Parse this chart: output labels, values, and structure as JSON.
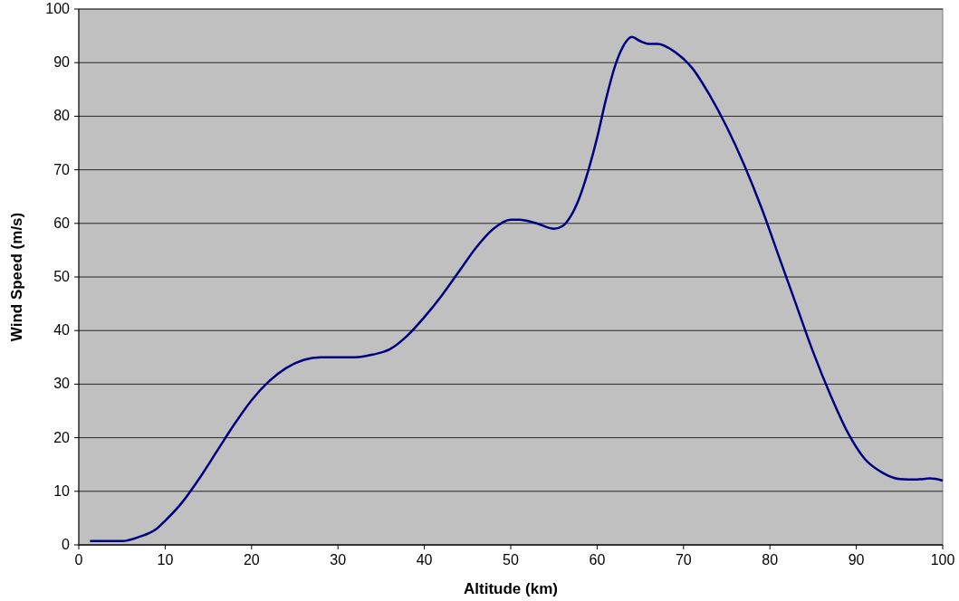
{
  "chart_data": {
    "type": "line",
    "xlabel": "Altitude  (km)",
    "ylabel": "Wind Speed  (m/s)",
    "xlim": [
      0,
      100
    ],
    "xticks": [
      0,
      10,
      20,
      30,
      40,
      50,
      60,
      70,
      80,
      90,
      100
    ],
    "ylim": [
      0,
      100
    ],
    "yticks": [
      0,
      10,
      20,
      30,
      40,
      50,
      60,
      70,
      80,
      90,
      100
    ],
    "grid": "y",
    "series": [
      {
        "color": "#000080",
        "x": [
          1.3,
          5,
          7,
          9,
          10,
          12,
          14,
          16,
          18,
          20,
          22,
          24,
          26,
          28,
          32,
          34,
          36,
          38,
          40,
          42,
          44,
          46,
          48,
          50,
          51,
          53,
          55,
          56,
          57,
          58,
          59,
          60,
          61,
          62,
          63,
          64,
          65,
          66,
          67,
          69,
          71,
          73,
          75,
          77,
          79,
          81,
          83,
          85,
          87,
          89,
          91,
          93,
          95,
          97,
          98.5,
          100
        ],
        "values": [
          0.7,
          0.7,
          1.5,
          3,
          4.5,
          8,
          12.5,
          17.5,
          22.5,
          27,
          30.5,
          33,
          34.5,
          35,
          35,
          35.5,
          36.5,
          39,
          42.5,
          46.5,
          51,
          55.5,
          59,
          60.7,
          60.7,
          60,
          59,
          59.5,
          61.5,
          65,
          70,
          76,
          83,
          89,
          93,
          94.8,
          94,
          93.5,
          93.5,
          92,
          89,
          84,
          78,
          71,
          63,
          54,
          45,
          36,
          28,
          21,
          16,
          13.5,
          12.3,
          12.2,
          12.4,
          12
        ]
      }
    ]
  }
}
